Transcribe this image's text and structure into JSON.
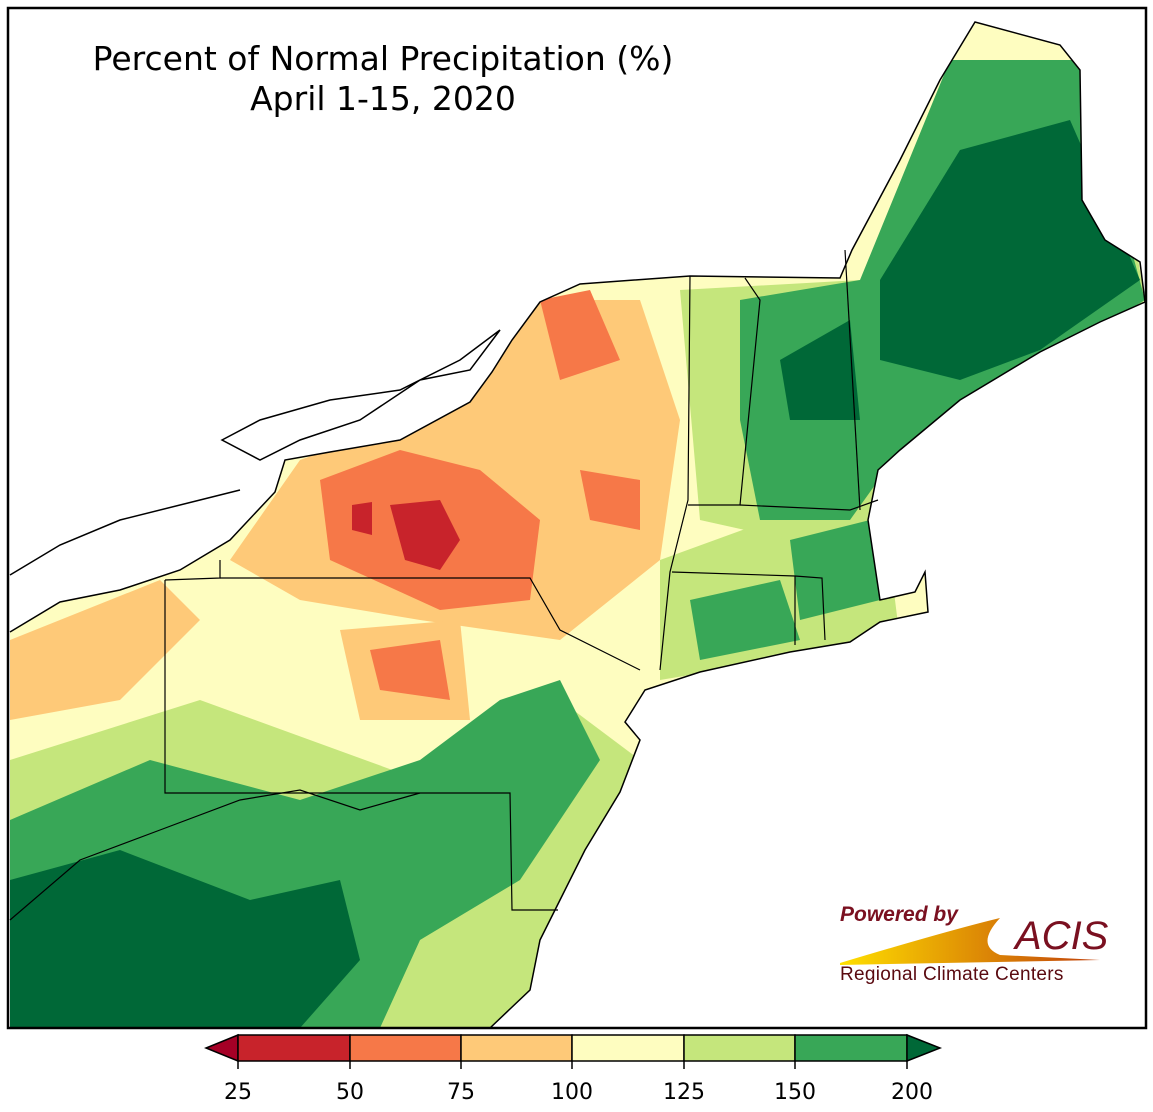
{
  "title": {
    "line1": "Percent of Normal Precipitation (%)",
    "line2": "April 1-15, 2020"
  },
  "colorbar": {
    "ticks": [
      "25",
      "50",
      "75",
      "100",
      "125",
      "150",
      "200"
    ],
    "colors": {
      "below": "#a50026",
      "b25_50": "#c8232b",
      "b50_75": "#f67848",
      "b75_100": "#fec978",
      "b100_125": "#fefdc0",
      "b125_150": "#c5e67c",
      "b150_200": "#38a757",
      "above": "#006837"
    }
  },
  "logo": {
    "powered_by": "Powered by",
    "acis": "ACIS",
    "rcc": "Regional Climate Centers"
  }
}
